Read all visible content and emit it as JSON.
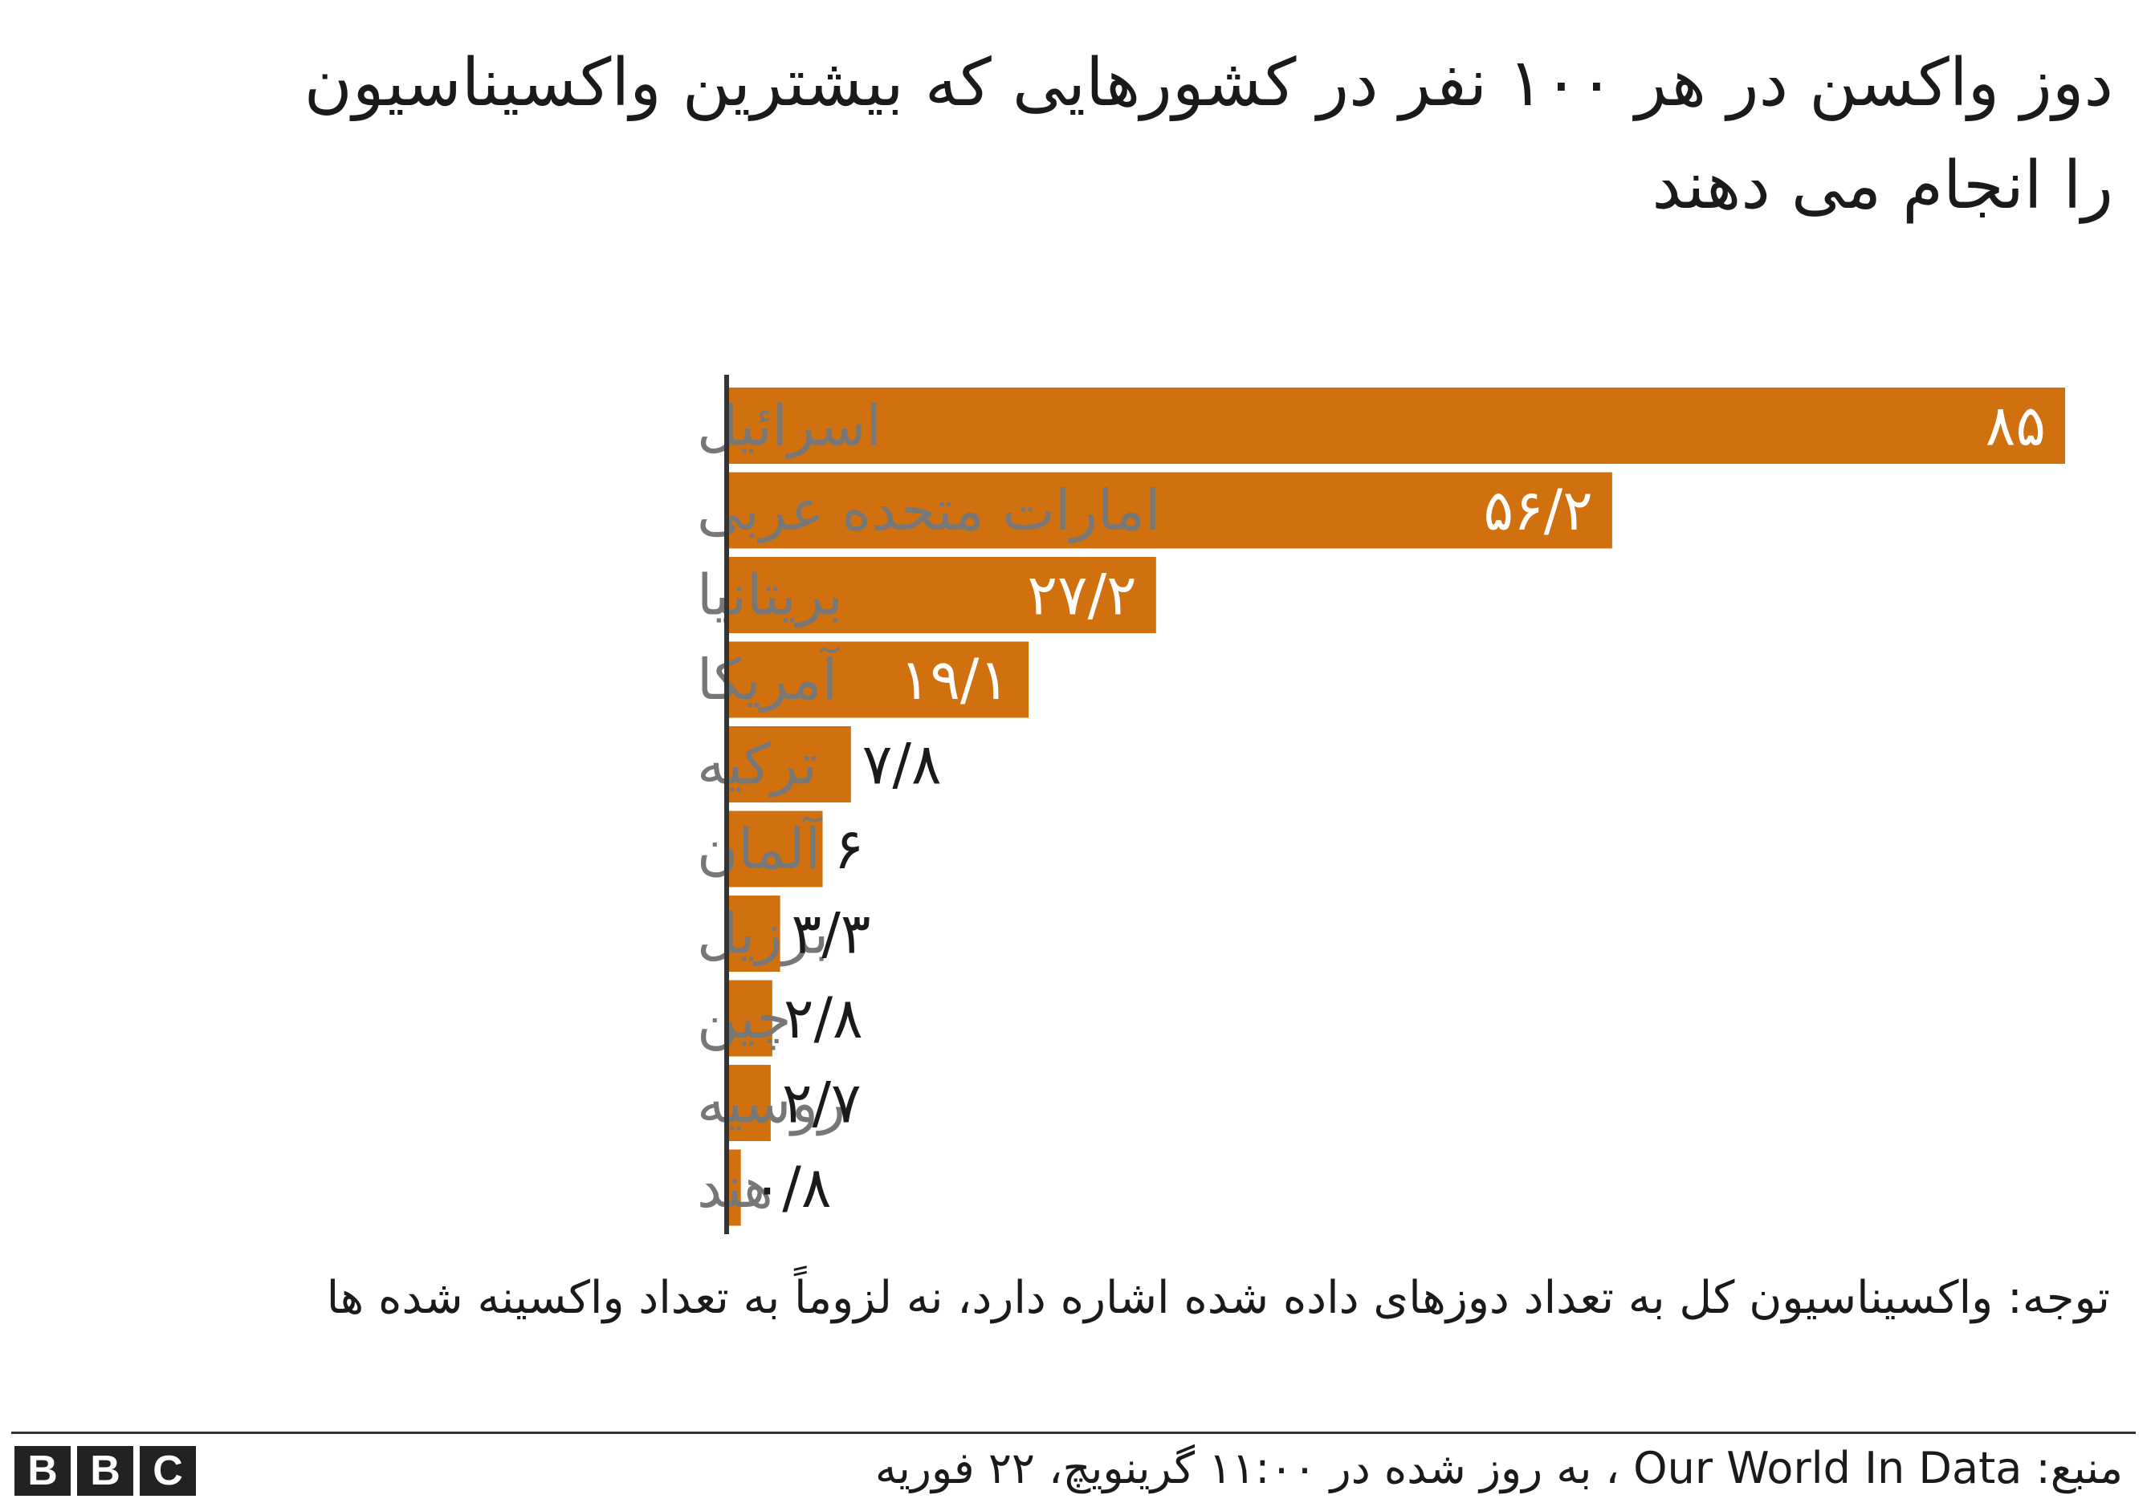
{
  "chart_data": {
    "type": "bar",
    "orientation": "horizontal",
    "title": "دوز واکسن در هر ۱۰۰ نفر در کشورهایی که بیشترین واکسیناسیون را انجام می دهند",
    "categories": [
      "اسرائیل",
      "امارات متحده عربی",
      "بریتانیا",
      "آمریکا",
      "ترکیه",
      "آلمان",
      "برزیل",
      "چین",
      "روسیه",
      "هند"
    ],
    "values": [
      85,
      56.2,
      27.2,
      19.1,
      7.8,
      6,
      3.3,
      2.8,
      2.7,
      0.8
    ],
    "value_labels": [
      "۸۵",
      "۵۶/۲",
      "۲۷/۲",
      "۱۹/۱",
      "۷/۸",
      "۶",
      "۳/۳",
      "۲/۸",
      "۲/۷",
      "۰/۸"
    ],
    "xlim": [
      0,
      85
    ],
    "grid": false,
    "legend": "none",
    "colors": {
      "bar": "#d1700e",
      "category_label": "#777777",
      "value_label_inside": "#ffffff",
      "value_label_outside": "#1a1a1a",
      "axis": "#333333"
    }
  },
  "note": "توجه: واکسیناسیون کل به تعداد دوزهای داده شده اشاره دارد، نه لزوماً به تعداد واکسینه شده ها",
  "source": "منبع: Our World In Data ، به روز شده در ۱۱:۰۰ گرینویچ، ۲۲ فوریه",
  "logo": {
    "letters": [
      "B",
      "B",
      "C"
    ]
  }
}
